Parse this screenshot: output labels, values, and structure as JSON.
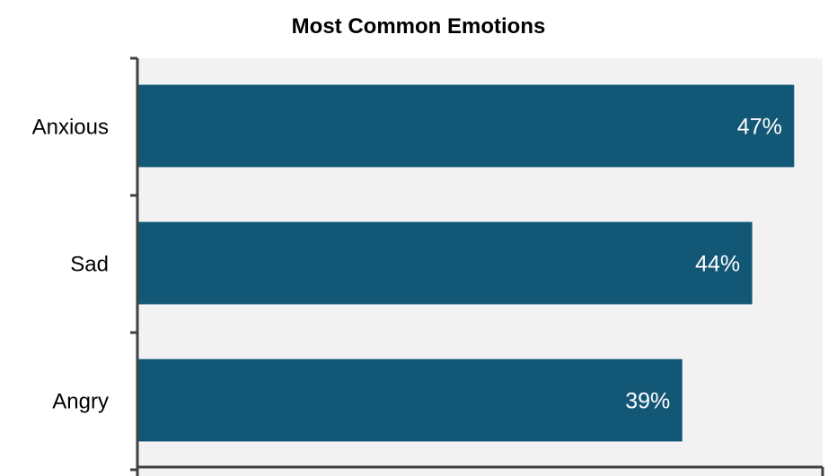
{
  "chart_data": {
    "type": "bar",
    "orientation": "horizontal",
    "title": "Most Common Emotions",
    "categories": [
      "Anxious",
      "Sad",
      "Angry"
    ],
    "values": [
      47,
      44,
      39
    ],
    "value_labels": [
      "47%",
      "44%",
      "39%"
    ],
    "xlabel": "",
    "ylabel": "",
    "xlim": [
      0,
      49
    ],
    "grid": false,
    "legend": "none",
    "colors": {
      "bar": "#135776",
      "plot_background": "#f2f2f2",
      "axis": "#404040",
      "label_text": "#ffffff"
    }
  }
}
